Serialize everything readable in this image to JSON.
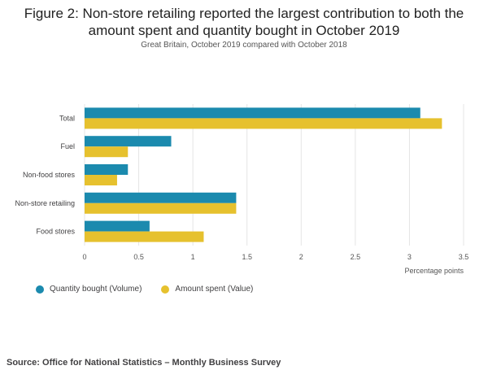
{
  "title_line1": "Figure 2: Non-store retailing reported the largest contribution to both the",
  "title_line2": "amount spent and quantity bought in October 2019",
  "subtitle": "Great Britain, October 2019 compared with October 2018",
  "source": "Source: Office for National Statistics – Monthly Business Survey",
  "colors": {
    "volume": "#1b8aae",
    "value": "#e6c12e",
    "grid": "#e5e5e5"
  },
  "chart_data": {
    "type": "bar",
    "orientation": "horizontal",
    "categories": [
      "Total",
      "Fuel",
      "Non-food stores",
      "Non-store retailing",
      "Food stores"
    ],
    "series": [
      {
        "name": "Quantity bought (Volume)",
        "values": [
          3.1,
          0.8,
          0.4,
          1.4,
          0.6
        ]
      },
      {
        "name": "Amount spent (Value)",
        "values": [
          3.3,
          0.4,
          0.3,
          1.4,
          1.1
        ]
      }
    ],
    "xlabel": "Percentage points",
    "xlim": [
      0,
      3.5
    ],
    "xticks": [
      "0",
      "0.5",
      "1",
      "1.5",
      "2",
      "2.5",
      "3",
      "3.5"
    ],
    "grid": "vertical",
    "legend_position": "bottom-left"
  }
}
